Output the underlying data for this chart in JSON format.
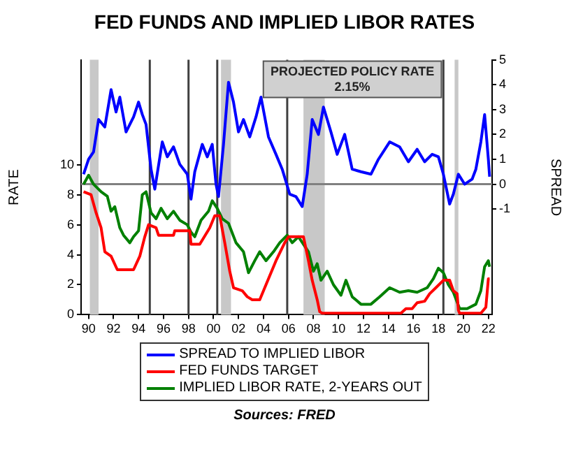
{
  "chart_data": {
    "type": "line",
    "title": "FED FUNDS AND IMPLIED LIBOR RATES",
    "ylabel": "RATE",
    "y2label": "SPREAD",
    "xlim": [
      1989.4,
      2022.3
    ],
    "xticks": [
      {
        "value": 1990,
        "label": "90"
      },
      {
        "value": 1992,
        "label": "92"
      },
      {
        "value": 1994,
        "label": "94"
      },
      {
        "value": 1996,
        "label": "96"
      },
      {
        "value": 1998,
        "label": "98"
      },
      {
        "value": 2000,
        "label": "00"
      },
      {
        "value": 2002,
        "label": "02"
      },
      {
        "value": 2004,
        "label": "04"
      },
      {
        "value": 2006,
        "label": "06"
      },
      {
        "value": 2008,
        "label": "08"
      },
      {
        "value": 2010,
        "label": "10"
      },
      {
        "value": 2012,
        "label": "12"
      },
      {
        "value": 2014,
        "label": "14"
      },
      {
        "value": 2016,
        "label": "16"
      },
      {
        "value": 2018,
        "label": "18"
      },
      {
        "value": 2020,
        "label": "20"
      },
      {
        "value": 2022,
        "label": "22"
      }
    ],
    "ylim": [
      0,
      17
    ],
    "yticks": [
      0,
      2,
      4,
      6,
      8,
      10
    ],
    "y2lim": [
      -5.25,
      5
    ],
    "y2ticks": [
      -1,
      0,
      1,
      2,
      3,
      4,
      5
    ],
    "grid": false,
    "legend": "bottom",
    "marker": "none",
    "line_style": "solid",
    "series": [
      {
        "name": "SPREAD TO IMPLIED LIBOR",
        "color": "#0000ff",
        "axis": "y2",
        "x": [
          1989.6,
          1990.0,
          1990.4,
          1990.8,
          1991.3,
          1991.8,
          1992.2,
          1992.5,
          1993.0,
          1993.6,
          1994.0,
          1994.3,
          1994.6,
          1995.0,
          1995.3,
          1995.9,
          1996.3,
          1996.8,
          1997.3,
          1997.9,
          1998.2,
          1998.5,
          1999.1,
          1999.5,
          1999.9,
          2000.2,
          2000.4,
          2000.8,
          2001.2,
          2001.6,
          2002.0,
          2002.4,
          2002.9,
          2003.4,
          2003.8,
          2004.4,
          2005.0,
          2005.5,
          2006.1,
          2006.6,
          2007.1,
          2007.5,
          2007.9,
          2008.4,
          2008.8,
          2009.4,
          2009.9,
          2010.5,
          2011.1,
          2011.8,
          2012.6,
          2013.2,
          2014.1,
          2014.9,
          2015.6,
          2016.3,
          2016.9,
          2017.5,
          2018.0,
          2018.4,
          2018.9,
          2019.2,
          2019.6,
          2020.1,
          2020.7,
          2021.0,
          2021.4,
          2021.7,
          2022.0,
          2022.1
        ],
        "values": [
          0.4,
          1.0,
          1.3,
          2.6,
          2.3,
          3.8,
          2.9,
          3.5,
          2.1,
          2.7,
          3.3,
          2.8,
          2.4,
          0.6,
          -0.2,
          1.7,
          1.1,
          1.5,
          0.8,
          0.4,
          -0.6,
          0.5,
          1.6,
          1.1,
          1.6,
          0.0,
          -0.5,
          1.6,
          4.1,
          3.3,
          2.1,
          2.6,
          1.9,
          2.7,
          3.5,
          1.9,
          1.2,
          0.6,
          -0.4,
          -0.5,
          -0.9,
          0.4,
          2.6,
          2.0,
          3.1,
          2.1,
          1.2,
          2.0,
          0.6,
          0.5,
          0.4,
          1.0,
          1.7,
          1.5,
          0.9,
          1.4,
          0.9,
          1.2,
          1.1,
          0.4,
          -0.8,
          -0.4,
          0.4,
          0.0,
          0.2,
          0.6,
          1.7,
          2.8,
          1.0,
          0.3
        ]
      },
      {
        "name": "FED FUNDS TARGET",
        "color": "#ff0000",
        "x": [
          1989.6,
          1990.2,
          1990.6,
          1991.0,
          1991.3,
          1991.8,
          1992.3,
          1993.6,
          1994.1,
          1994.5,
          1994.8,
          1995.4,
          1995.6,
          1996.8,
          1996.9,
          1998.1,
          1998.2,
          1998.9,
          1999.7,
          2000.1,
          2000.5,
          2000.9,
          2001.3,
          2001.6,
          2002.3,
          2002.7,
          2003.1,
          2003.7,
          2004.2,
          2005.0,
          2005.7,
          2006.0,
          2006.6,
          2007.2,
          2007.6,
          2007.9,
          2008.3,
          2008.5,
          2008.7,
          2015.0,
          2015.4,
          2015.9,
          2016.3,
          2016.9,
          2017.3,
          2017.8,
          2018.4,
          2018.9,
          2019.2,
          2019.5,
          2019.6,
          2019.7,
          2021.4,
          2021.8,
          2022.0,
          2022.1
        ],
        "values": [
          8.2,
          8.0,
          6.8,
          5.8,
          4.2,
          3.9,
          3.0,
          3.0,
          3.9,
          5.2,
          6.0,
          5.8,
          5.3,
          5.3,
          5.6,
          5.6,
          4.7,
          4.7,
          5.8,
          6.6,
          6.6,
          4.8,
          2.9,
          1.8,
          1.6,
          1.2,
          1.0,
          1.0,
          2.0,
          3.6,
          4.8,
          5.2,
          5.2,
          5.2,
          3.6,
          2.3,
          1.0,
          0.2,
          0.1,
          0.1,
          0.4,
          0.4,
          0.8,
          0.9,
          1.4,
          1.8,
          2.3,
          2.3,
          1.6,
          1.4,
          0.3,
          0.1,
          0.1,
          0.5,
          2.4,
          2.4
        ]
      },
      {
        "name": "IMPLIED LIBOR RATE, 2-YEARS OUT",
        "color": "#008000",
        "x": [
          1989.6,
          1990.0,
          1990.4,
          1991.0,
          1991.5,
          1991.8,
          1992.1,
          1992.5,
          1992.8,
          1993.3,
          1993.6,
          1994.0,
          1994.3,
          1994.6,
          1995.0,
          1995.4,
          1995.8,
          1996.3,
          1996.8,
          1997.3,
          1997.9,
          1998.2,
          1998.5,
          1999.0,
          1999.6,
          1999.9,
          2000.3,
          2000.7,
          2001.2,
          2001.8,
          2002.4,
          2002.8,
          2003.3,
          2003.7,
          2004.2,
          2004.8,
          2005.3,
          2005.9,
          2006.3,
          2006.8,
          2007.2,
          2007.6,
          2008.0,
          2008.3,
          2008.6,
          2009.1,
          2009.6,
          2010.2,
          2010.6,
          2011.1,
          2011.8,
          2012.6,
          2013.3,
          2014.1,
          2014.9,
          2015.6,
          2016.3,
          2017.1,
          2017.6,
          2018.0,
          2018.4,
          2018.8,
          2019.2,
          2019.7,
          2020.3,
          2021.0,
          2021.4,
          2021.7,
          2022.0,
          2022.1
        ],
        "values": [
          8.7,
          9.3,
          8.7,
          8.2,
          7.9,
          6.9,
          7.2,
          5.8,
          5.3,
          4.8,
          5.2,
          5.6,
          8.0,
          8.2,
          6.8,
          6.4,
          7.1,
          6.4,
          6.9,
          6.3,
          6.0,
          5.5,
          5.2,
          6.3,
          6.9,
          7.6,
          7.1,
          6.4,
          6.1,
          4.8,
          4.2,
          2.8,
          3.6,
          4.2,
          3.6,
          4.2,
          4.8,
          5.3,
          4.8,
          5.2,
          4.7,
          4.2,
          2.9,
          3.4,
          2.3,
          2.9,
          2.0,
          1.3,
          2.3,
          1.2,
          0.7,
          0.7,
          1.2,
          1.8,
          1.5,
          1.6,
          1.5,
          1.8,
          2.4,
          3.1,
          2.8,
          2.0,
          1.5,
          0.4,
          0.4,
          0.7,
          1.6,
          3.2,
          3.6,
          3.2
        ]
      }
    ],
    "ref_lines": [
      {
        "axis": "y2",
        "value": 0,
        "color": "#808080"
      },
      {
        "axis": "x",
        "value": 1994.9,
        "color": "#404040"
      },
      {
        "axis": "x",
        "value": 1998.0,
        "color": "#404040"
      },
      {
        "axis": "x",
        "value": 2000.3,
        "color": "#404040"
      },
      {
        "axis": "x",
        "value": 2005.9,
        "color": "#404040"
      },
      {
        "axis": "x",
        "value": 2018.4,
        "color": "#404040"
      }
    ],
    "bands": [
      {
        "axis": "x",
        "from": 1990.1,
        "to": 1990.8,
        "color": "#c8c8c8"
      },
      {
        "axis": "x",
        "from": 2000.6,
        "to": 2001.4,
        "color": "#c8c8c8"
      },
      {
        "axis": "x",
        "from": 2007.2,
        "to": 2008.9,
        "color": "#c8c8c8"
      },
      {
        "axis": "x",
        "from": 2019.3,
        "to": 2019.6,
        "color": "#c8c8c8"
      }
    ],
    "annotations": [
      "PROJECTED POLICY RATE\n2.15%",
      "Sources: FRED"
    ]
  }
}
